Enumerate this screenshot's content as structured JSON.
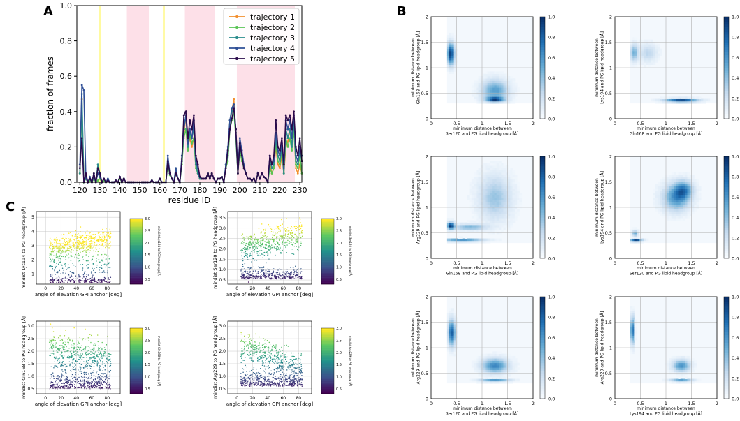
{
  "panels": {
    "A": "A",
    "B": "B",
    "C": "C"
  },
  "colorbar_ticks_B": [
    "0.0",
    "0.2",
    "0.4",
    "0.6",
    "0.8",
    "1.0"
  ],
  "colors": {
    "traj1": "#f28e2b",
    "traj2": "#59c454",
    "traj3": "#2a8c8c",
    "traj4": "#2f4f96",
    "traj5": "#2a0a4a",
    "yellow_band": "#fffaa0",
    "pink_band": "#fde0e8",
    "blues": "#08519c"
  },
  "chart_data": [
    {
      "panel": "A",
      "type": "line",
      "xlabel": "residue ID",
      "ylabel": "fraction of frames",
      "xlim": [
        118.5,
        231
      ],
      "ylim": [
        0,
        1.0
      ],
      "xticks": [
        120,
        130,
        140,
        150,
        160,
        170,
        180,
        190,
        200,
        210,
        220,
        230
      ],
      "yticks": [
        0.0,
        0.2,
        0.4,
        0.6,
        0.8,
        1.0
      ],
      "legend_position": "top-right",
      "highlight_bands": [
        {
          "from": 129.5,
          "to": 130.5,
          "color": "yellow"
        },
        {
          "from": 143.5,
          "to": 154.5,
          "color": "pink"
        },
        {
          "from": 161.5,
          "to": 162.5,
          "color": "yellow"
        },
        {
          "from": 172.5,
          "to": 187.5,
          "color": "pink"
        },
        {
          "from": 198.5,
          "to": 227.5,
          "color": "pink"
        }
      ],
      "x_start": 120,
      "series": [
        {
          "name": "trajectory 1",
          "values": [
            0.05,
            0.47,
            0.0,
            0.03,
            0.0,
            0.01,
            0.0,
            0.02,
            0.0,
            0.01,
            0.02,
            0.0,
            0.02,
            0.0,
            0.01,
            0.0,
            0.0,
            0.0,
            0.01,
            0.0,
            0.03,
            0.0,
            0.02,
            0.0,
            0.0,
            0.0,
            0.0,
            0.0,
            0.0,
            0.0,
            0.0,
            0.0,
            0.0,
            0.0,
            0.0,
            0.0,
            0.01,
            0.0,
            0.0,
            0.0,
            0.02,
            0.0,
            0.0,
            0.0,
            0.12,
            0.05,
            0.02,
            0.0,
            0.05,
            0.02,
            0.0,
            0.13,
            0.27,
            0.38,
            0.2,
            0.25,
            0.2,
            0.25,
            0.1,
            0.05,
            0.02,
            0.02,
            0.02,
            0.02,
            0.05,
            0.02,
            0.05,
            0.02,
            0.0,
            0.02,
            0.02,
            0.03,
            0.0,
            0.08,
            0.15,
            0.35,
            0.4,
            0.47,
            0.28,
            0.05,
            0.2,
            0.15,
            0.08,
            0.05,
            0.02,
            0.02,
            0.01,
            0.02,
            0.0,
            0.05,
            0.02,
            0.05,
            0.03,
            0.02,
            0.0,
            0.1,
            0.05,
            0.08,
            0.2,
            0.1,
            0.08,
            0.15,
            0.05,
            0.2,
            0.23,
            0.3,
            0.2,
            0.35,
            0.08,
            0.05,
            0.1,
            0.05
          ]
        },
        {
          "name": "trajectory 2",
          "values": [
            0.05,
            0.42,
            0.0,
            0.02,
            0.0,
            0.01,
            0.0,
            0.02,
            0.0,
            0.01,
            0.02,
            0.0,
            0.01,
            0.0,
            0.01,
            0.0,
            0.0,
            0.0,
            0.01,
            0.0,
            0.02,
            0.0,
            0.02,
            0.0,
            0.0,
            0.0,
            0.0,
            0.0,
            0.0,
            0.0,
            0.0,
            0.0,
            0.0,
            0.0,
            0.0,
            0.0,
            0.01,
            0.0,
            0.0,
            0.0,
            0.02,
            0.0,
            0.0,
            0.0,
            0.1,
            0.04,
            0.02,
            0.0,
            0.05,
            0.02,
            0.0,
            0.1,
            0.25,
            0.3,
            0.18,
            0.27,
            0.22,
            0.25,
            0.08,
            0.05,
            0.02,
            0.02,
            0.02,
            0.02,
            0.05,
            0.02,
            0.05,
            0.02,
            0.0,
            0.02,
            0.02,
            0.03,
            0.0,
            0.08,
            0.12,
            0.3,
            0.35,
            0.4,
            0.25,
            0.05,
            0.18,
            0.12,
            0.08,
            0.05,
            0.02,
            0.02,
            0.01,
            0.02,
            0.0,
            0.05,
            0.02,
            0.05,
            0.03,
            0.02,
            0.0,
            0.08,
            0.05,
            0.08,
            0.22,
            0.12,
            0.1,
            0.18,
            0.05,
            0.25,
            0.2,
            0.25,
            0.18,
            0.3,
            0.1,
            0.08,
            0.15,
            0.05
          ]
        },
        {
          "name": "trajectory 3",
          "values": [
            0.05,
            0.5,
            0.0,
            0.04,
            0.0,
            0.02,
            0.0,
            0.05,
            0.0,
            0.1,
            0.05,
            0.0,
            0.02,
            0.0,
            0.01,
            0.0,
            0.0,
            0.0,
            0.01,
            0.0,
            0.03,
            0.0,
            0.02,
            0.0,
            0.0,
            0.0,
            0.0,
            0.0,
            0.0,
            0.0,
            0.0,
            0.0,
            0.0,
            0.0,
            0.0,
            0.0,
            0.01,
            0.0,
            0.0,
            0.0,
            0.02,
            0.0,
            0.0,
            0.0,
            0.12,
            0.05,
            0.02,
            0.0,
            0.08,
            0.02,
            0.0,
            0.12,
            0.3,
            0.38,
            0.2,
            0.28,
            0.25,
            0.3,
            0.1,
            0.05,
            0.02,
            0.02,
            0.02,
            0.02,
            0.05,
            0.02,
            0.05,
            0.02,
            0.0,
            0.02,
            0.02,
            0.03,
            0.0,
            0.1,
            0.15,
            0.35,
            0.4,
            0.42,
            0.28,
            0.05,
            0.2,
            0.15,
            0.08,
            0.05,
            0.02,
            0.02,
            0.01,
            0.02,
            0.0,
            0.05,
            0.02,
            0.05,
            0.03,
            0.02,
            0.0,
            0.12,
            0.08,
            0.1,
            0.25,
            0.15,
            0.12,
            0.2,
            0.05,
            0.3,
            0.25,
            0.3,
            0.2,
            0.35,
            0.12,
            0.1,
            0.18,
            0.12
          ]
        },
        {
          "name": "trajectory 4",
          "values": [
            0.1,
            0.55,
            0.52,
            0.02,
            0.0,
            0.03,
            0.0,
            0.03,
            0.0,
            0.05,
            0.03,
            0.0,
            0.02,
            0.0,
            0.02,
            0.0,
            0.0,
            0.0,
            0.01,
            0.0,
            0.03,
            0.0,
            0.02,
            0.0,
            0.0,
            0.0,
            0.0,
            0.0,
            0.0,
            0.0,
            0.0,
            0.0,
            0.0,
            0.0,
            0.0,
            0.0,
            0.01,
            0.0,
            0.0,
            0.0,
            0.02,
            0.0,
            0.0,
            0.0,
            0.15,
            0.05,
            0.02,
            0.0,
            0.08,
            0.02,
            0.0,
            0.15,
            0.3,
            0.38,
            0.22,
            0.3,
            0.25,
            0.35,
            0.12,
            0.08,
            0.03,
            0.02,
            0.02,
            0.02,
            0.05,
            0.02,
            0.05,
            0.02,
            0.0,
            0.02,
            0.02,
            0.03,
            0.0,
            0.1,
            0.2,
            0.35,
            0.42,
            0.44,
            0.3,
            0.08,
            0.25,
            0.18,
            0.1,
            0.05,
            0.02,
            0.02,
            0.01,
            0.02,
            0.0,
            0.05,
            0.02,
            0.05,
            0.03,
            0.02,
            0.0,
            0.15,
            0.1,
            0.12,
            0.28,
            0.18,
            0.15,
            0.22,
            0.08,
            0.35,
            0.3,
            0.35,
            0.25,
            0.38,
            0.15,
            0.12,
            0.2,
            0.15
          ]
        },
        {
          "name": "trajectory 5",
          "values": [
            0.08,
            0.25,
            0.0,
            0.05,
            0.0,
            0.02,
            0.0,
            0.05,
            0.0,
            0.08,
            0.05,
            0.0,
            0.02,
            0.0,
            0.01,
            0.0,
            0.0,
            0.0,
            0.01,
            0.0,
            0.03,
            0.0,
            0.02,
            0.0,
            0.0,
            0.0,
            0.0,
            0.0,
            0.0,
            0.0,
            0.0,
            0.0,
            0.0,
            0.0,
            0.0,
            0.0,
            0.01,
            0.0,
            0.0,
            0.0,
            0.02,
            0.0,
            0.0,
            0.0,
            0.12,
            0.05,
            0.02,
            0.0,
            0.05,
            0.02,
            0.0,
            0.12,
            0.38,
            0.4,
            0.25,
            0.35,
            0.3,
            0.38,
            0.15,
            0.1,
            0.03,
            0.02,
            0.02,
            0.02,
            0.05,
            0.02,
            0.05,
            0.02,
            0.0,
            0.02,
            0.02,
            0.03,
            0.0,
            0.08,
            0.18,
            0.3,
            0.36,
            0.42,
            0.3,
            0.05,
            0.22,
            0.15,
            0.08,
            0.05,
            0.02,
            0.02,
            0.01,
            0.02,
            0.0,
            0.05,
            0.02,
            0.05,
            0.03,
            0.02,
            0.0,
            0.15,
            0.1,
            0.15,
            0.35,
            0.2,
            0.18,
            0.25,
            0.1,
            0.38,
            0.35,
            0.38,
            0.3,
            0.4,
            0.2,
            0.15,
            0.25,
            0.12
          ]
        }
      ]
    },
    {
      "panel": "B",
      "type": "heatmap",
      "xlim": [
        0,
        2
      ],
      "ylim": [
        0,
        2
      ],
      "xticks": [
        "0",
        "0.5",
        "1",
        "1.5",
        "2"
      ],
      "yticks": [
        "0",
        "0.5",
        "1",
        "1.5",
        "2"
      ],
      "colorbar_range": [
        0.0,
        1.0
      ],
      "subplots": [
        {
          "xlabel": [
            "minimum distance between",
            "Ser120 and PG lipid headgroup [Å]"
          ],
          "ylabel": [
            "minimum distance between",
            "Gln168 and PG lipid headgroup [Å]"
          ],
          "hotspots": [
            [
              0.38,
              1.28,
              0.95,
              0.05,
              0.15
            ],
            [
              1.25,
              0.55,
              0.55,
              0.18,
              0.15
            ],
            [
              1.25,
              0.38,
              0.75,
              0.12,
              0.03
            ]
          ]
        },
        {
          "xlabel": [
            "minimum distance between",
            "Gln168 and PG lipid headgroup [Å]"
          ],
          "ylabel": [
            "minimum distance between",
            "Lys194 and PG lipid headgroup [Å]"
          ],
          "hotspots": [
            [
              0.38,
              1.3,
              0.45,
              0.05,
              0.12
            ],
            [
              0.65,
              1.3,
              0.25,
              0.12,
              0.12
            ],
            [
              1.3,
              0.36,
              0.9,
              0.22,
              0.025
            ]
          ]
        },
        {
          "xlabel": [
            "minimum distance between",
            "Gln168 and PG lipid headgroup [Å]"
          ],
          "ylabel": [
            "minimum distance between",
            "Arg229 and PG lipid headgroup [Å]"
          ],
          "hotspots": [
            [
              0.38,
              0.65,
              0.9,
              0.05,
              0.05
            ],
            [
              0.75,
              0.62,
              0.45,
              0.22,
              0.04
            ],
            [
              0.6,
              0.36,
              0.6,
              0.28,
              0.02
            ],
            [
              1.25,
              1.2,
              0.35,
              0.22,
              0.3
            ]
          ]
        },
        {
          "xlabel": [
            "minimum distance between",
            "Ser120 and PG lipid headgroup [Å]"
          ],
          "ylabel": [
            "minimum distance between",
            "Lys194 and PG lipid headgroup [Å]"
          ],
          "hotspots": [
            [
              0.42,
              0.36,
              0.95,
              0.08,
              0.02
            ],
            [
              0.4,
              0.5,
              0.5,
              0.04,
              0.04
            ],
            [
              1.2,
              1.2,
              0.6,
              0.18,
              0.18
            ],
            [
              1.35,
              1.35,
              0.5,
              0.12,
              0.12
            ]
          ]
        },
        {
          "xlabel": [
            "minimum distance between",
            "Ser120 and PG lipid headgroup [Å]"
          ],
          "ylabel": [
            "minimum distance between",
            "Arg229 and PG lipid headgroup [Å]"
          ],
          "hotspots": [
            [
              0.4,
              1.3,
              0.8,
              0.05,
              0.18
            ],
            [
              1.25,
              0.65,
              0.65,
              0.18,
              0.1
            ],
            [
              1.25,
              0.36,
              0.6,
              0.2,
              0.02
            ]
          ]
        },
        {
          "xlabel": [
            "minimum distance between",
            "Lys194 and PG lipid headgroup [Å]"
          ],
          "ylabel": [
            "minimum distance between",
            "Arg229 and PG lipid headgroup [Å]"
          ],
          "hotspots": [
            [
              0.35,
              1.35,
              0.9,
              0.025,
              0.18
            ],
            [
              1.3,
              0.65,
              0.6,
              0.12,
              0.08
            ],
            [
              1.3,
              0.36,
              0.55,
              0.15,
              0.02
            ]
          ]
        }
      ]
    },
    {
      "panel": "C",
      "type": "scatter",
      "xlabel": "angle of elevation GPI anchor [deg]",
      "xticks": [
        "0",
        "20",
        "40",
        "60",
        "80"
      ],
      "colorbar_ticks": [
        "0.5",
        "1.0",
        "1.5",
        "2.0",
        "2.5",
        "3.0"
      ],
      "colormap": "viridis",
      "subplots": [
        {
          "ylabel": "mindist Lys194 to PG headgroup [Å]",
          "cblabel": "mindist Lys194 to PG headgroup [Å]",
          "yticks": [
            "1",
            "2",
            "3",
            "4",
            "5"
          ],
          "ylim": [
            0.3,
            5.4
          ]
        },
        {
          "ylabel": "mindist Ser120 to PG headgroup [Å]",
          "cblabel": "mindist Ser120 to PG headgroup [Å]",
          "yticks": [
            "0.5",
            "1.0",
            "1.5",
            "2.0",
            "2.5",
            "3.0",
            "3.5"
          ],
          "ylim": [
            0.3,
            3.8
          ]
        },
        {
          "ylabel": "mindist Gln168 to PG headgroup [Å]",
          "cblabel": "mindist Gln168 to PG headgroup [Å]",
          "yticks": [
            "0.5",
            "1.0",
            "1.5",
            "2.0",
            "2.5",
            "3.0"
          ],
          "ylim": [
            0.3,
            3.2
          ]
        },
        {
          "ylabel": "mindist Arg229 to PG headgroup [Å]",
          "cblabel": "mindist Arg229 to PG headgroup [Å]",
          "yticks": [
            "0.5",
            "1.0",
            "1.5",
            "2.0",
            "2.5",
            "3.0"
          ],
          "ylim": [
            0.3,
            3.2
          ]
        }
      ]
    }
  ]
}
